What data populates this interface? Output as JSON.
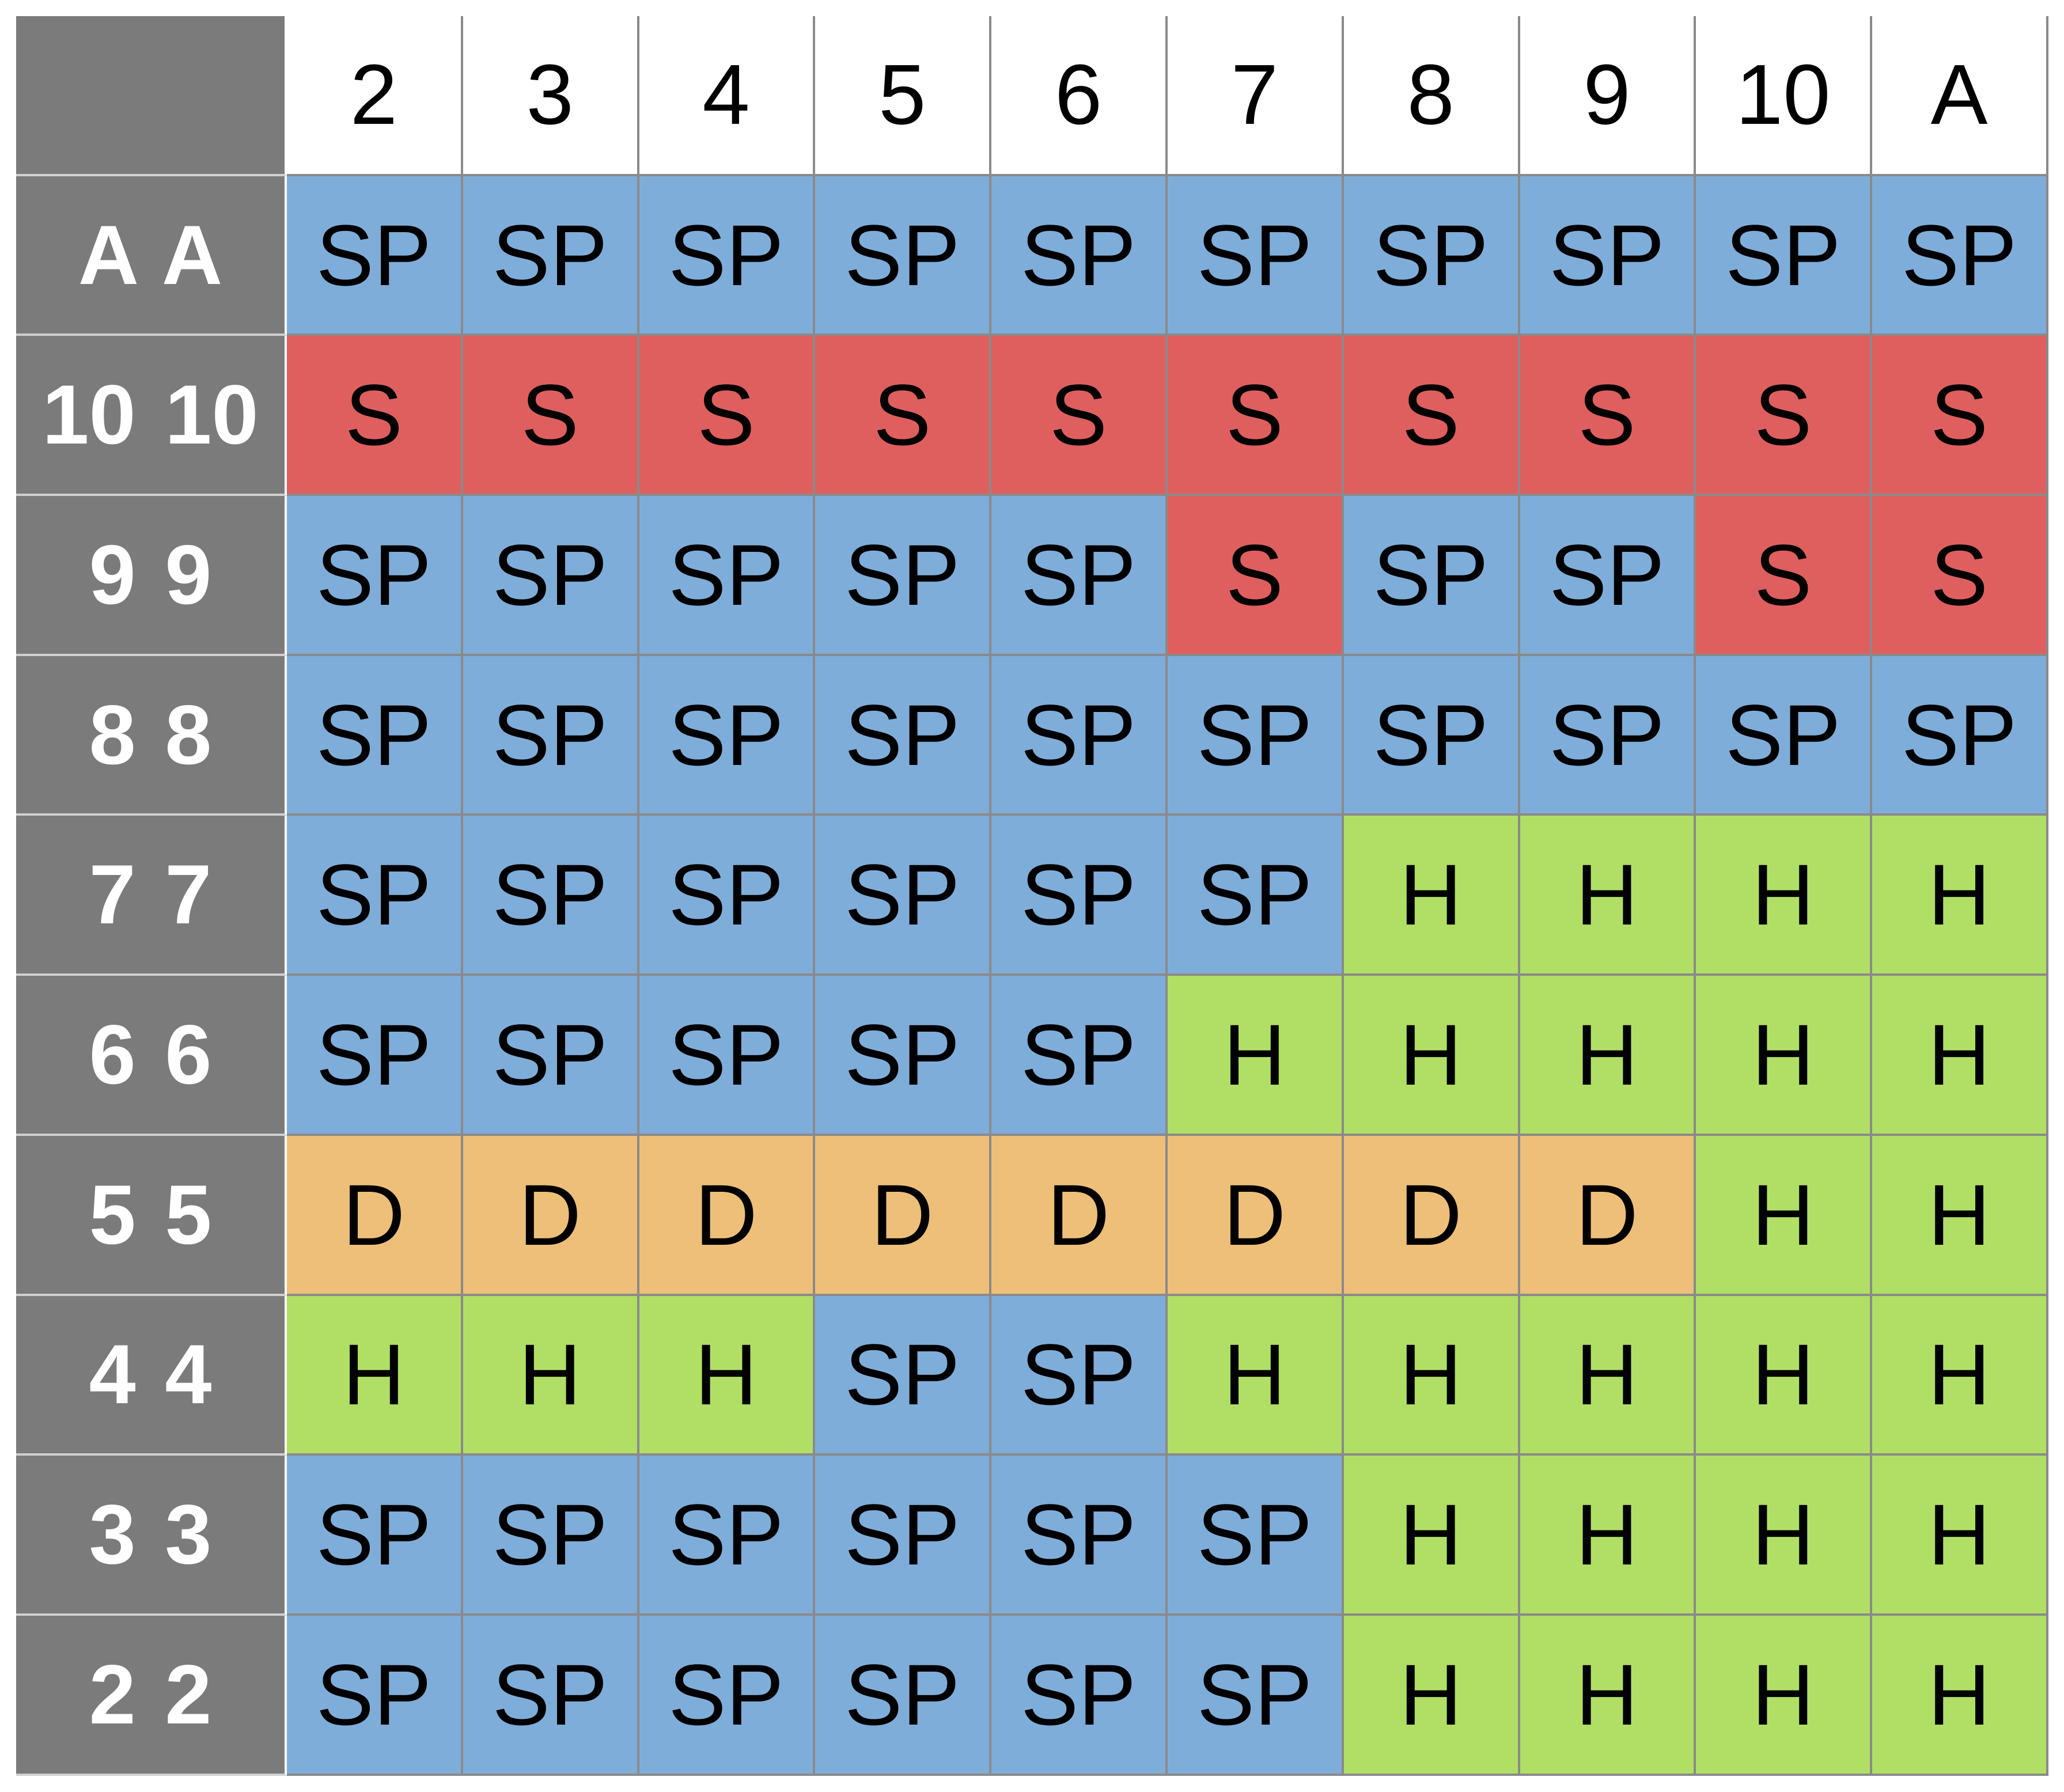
{
  "dealer_cards": [
    "2",
    "3",
    "4",
    "5",
    "6",
    "7",
    "8",
    "9",
    "10",
    "A"
  ],
  "rows": [
    {
      "pair": "A A",
      "actions": [
        "SP",
        "SP",
        "SP",
        "SP",
        "SP",
        "SP",
        "SP",
        "SP",
        "SP",
        "SP"
      ]
    },
    {
      "pair": "10 10",
      "actions": [
        "S",
        "S",
        "S",
        "S",
        "S",
        "S",
        "S",
        "S",
        "S",
        "S"
      ]
    },
    {
      "pair": "9 9",
      "actions": [
        "SP",
        "SP",
        "SP",
        "SP",
        "SP",
        "S",
        "SP",
        "SP",
        "S",
        "S"
      ]
    },
    {
      "pair": "8 8",
      "actions": [
        "SP",
        "SP",
        "SP",
        "SP",
        "SP",
        "SP",
        "SP",
        "SP",
        "SP",
        "SP"
      ]
    },
    {
      "pair": "7 7",
      "actions": [
        "SP",
        "SP",
        "SP",
        "SP",
        "SP",
        "SP",
        "H",
        "H",
        "H",
        "H"
      ]
    },
    {
      "pair": "6 6",
      "actions": [
        "SP",
        "SP",
        "SP",
        "SP",
        "SP",
        "H",
        "H",
        "H",
        "H",
        "H"
      ]
    },
    {
      "pair": "5 5",
      "actions": [
        "D",
        "D",
        "D",
        "D",
        "D",
        "D",
        "D",
        "D",
        "H",
        "H"
      ]
    },
    {
      "pair": "4 4",
      "actions": [
        "H",
        "H",
        "H",
        "SP",
        "SP",
        "H",
        "H",
        "H",
        "H",
        "H"
      ]
    },
    {
      "pair": "3 3",
      "actions": [
        "SP",
        "SP",
        "SP",
        "SP",
        "SP",
        "SP",
        "H",
        "H",
        "H",
        "H"
      ]
    },
    {
      "pair": "2 2",
      "actions": [
        "SP",
        "SP",
        "SP",
        "SP",
        "SP",
        "SP",
        "H",
        "H",
        "H",
        "H"
      ]
    }
  ],
  "action_colors": {
    "SP": "#7fadd9",
    "S": "#df5f5f",
    "H": "#b1df65",
    "D": "#eebf79"
  },
  "header_bg": "#7b7b7b"
}
